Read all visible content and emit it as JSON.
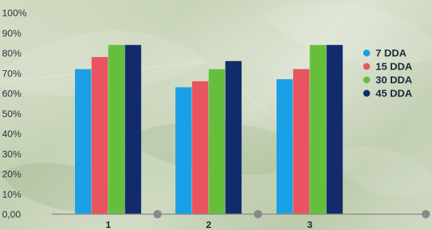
{
  "chart_data": {
    "type": "bar",
    "categories": [
      "1",
      "2",
      "3"
    ],
    "y_tick_labels": [
      "0,00",
      "10%",
      "20%",
      "30%",
      "40%",
      "50%",
      "60%",
      "70%",
      "80%",
      "90%",
      "100%"
    ],
    "ylim": [
      0,
      100
    ],
    "grid": false,
    "legend_position": "right",
    "series": [
      {
        "name": "7 DDA",
        "color": "#1aa0e6",
        "values": [
          72,
          63,
          67
        ]
      },
      {
        "name": "15 DDA",
        "color": "#e8545f",
        "values": [
          78,
          66,
          72
        ]
      },
      {
        "name": "30 DDA",
        "color": "#66bf3c",
        "values": [
          84,
          72,
          84
        ]
      },
      {
        "name": "45 DDA",
        "color": "#122b6b",
        "values": [
          84,
          76,
          84
        ]
      }
    ]
  },
  "colors": {
    "axis": "#8c8c8c",
    "axis_markers": "#8a8a8a"
  }
}
